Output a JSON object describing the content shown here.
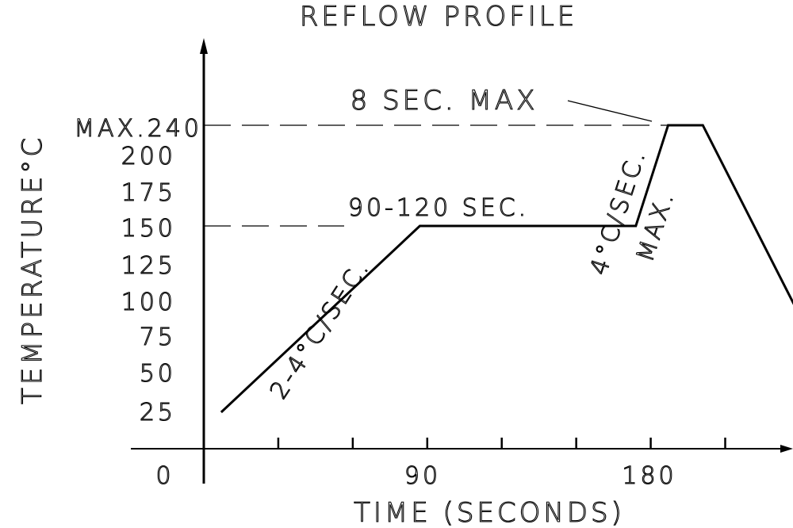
{
  "chart_data": {
    "type": "line",
    "title": "REFLOW PROFILE",
    "xlabel": "TIME (SECONDS)",
    "ylabel": "TEMPERATURE°C",
    "x_tick_labels": [
      "0",
      "90",
      "180"
    ],
    "y_tick_labels": [
      "25",
      "50",
      "75",
      "100",
      "125",
      "150",
      "175",
      "200",
      "MAX.240"
    ],
    "series": [
      {
        "x": [
          7,
          87,
          174,
          187,
          201,
          240
        ],
        "y": [
          25,
          150,
          150,
          240,
          240,
          90
        ]
      }
    ],
    "reference_lines": [
      240,
      150
    ],
    "annotations": {
      "ramp_up": "2-4°C/SEC.",
      "soak": "90-120 SEC.",
      "peak_ramp_line1": "4°C/SEC.",
      "peak_ramp_line2": "MAX.",
      "peak_hold": "8 SEC. MAX"
    },
    "grid": false
  }
}
